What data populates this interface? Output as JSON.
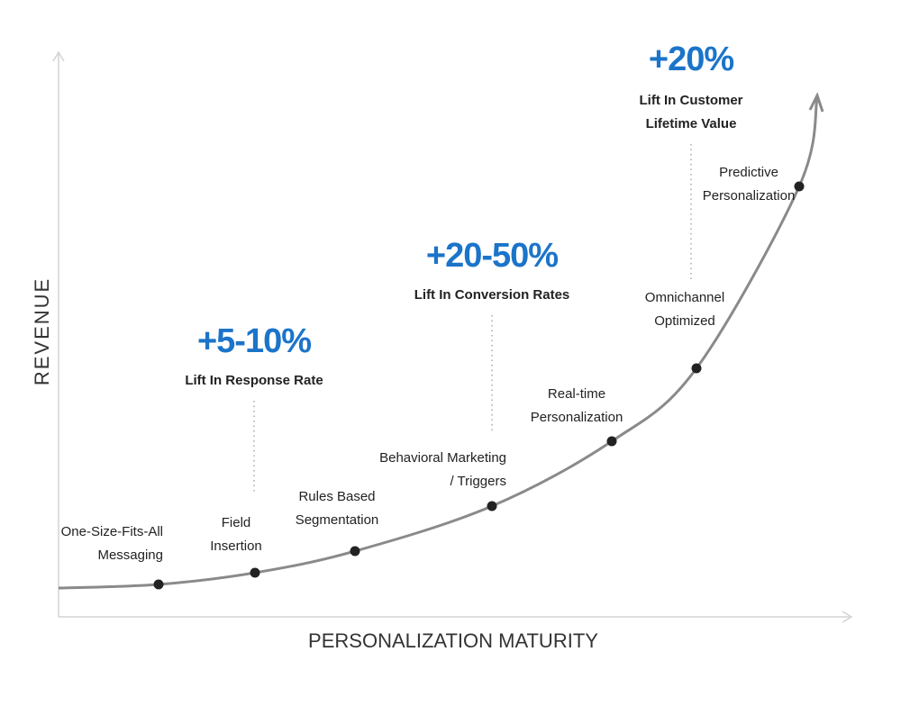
{
  "axes": {
    "x_label": "PERSONALIZATION MATURITY",
    "y_label": "REVENUE"
  },
  "stages": [
    {
      "lines": [
        "One-Size-Fits-All",
        "Messaging"
      ]
    },
    {
      "lines": [
        "Field",
        "Insertion"
      ]
    },
    {
      "lines": [
        "Rules Based",
        "Segmentation"
      ]
    },
    {
      "lines": [
        "Behavioral Marketing",
        "/ Triggers"
      ]
    },
    {
      "lines": [
        "Real-time",
        "Personalization"
      ]
    },
    {
      "lines": [
        "Omnichannel",
        "Optimized"
      ]
    },
    {
      "lines": [
        "Predictive",
        "Personalization"
      ]
    }
  ],
  "callouts": [
    {
      "value": "+5-10%",
      "caption": [
        "Lift In Response Rate"
      ]
    },
    {
      "value": "+20-50%",
      "caption": [
        "Lift In Conversion Rates"
      ]
    },
    {
      "value": "+20%",
      "caption": [
        "Lift In Customer",
        "Lifetime Value"
      ]
    }
  ]
}
